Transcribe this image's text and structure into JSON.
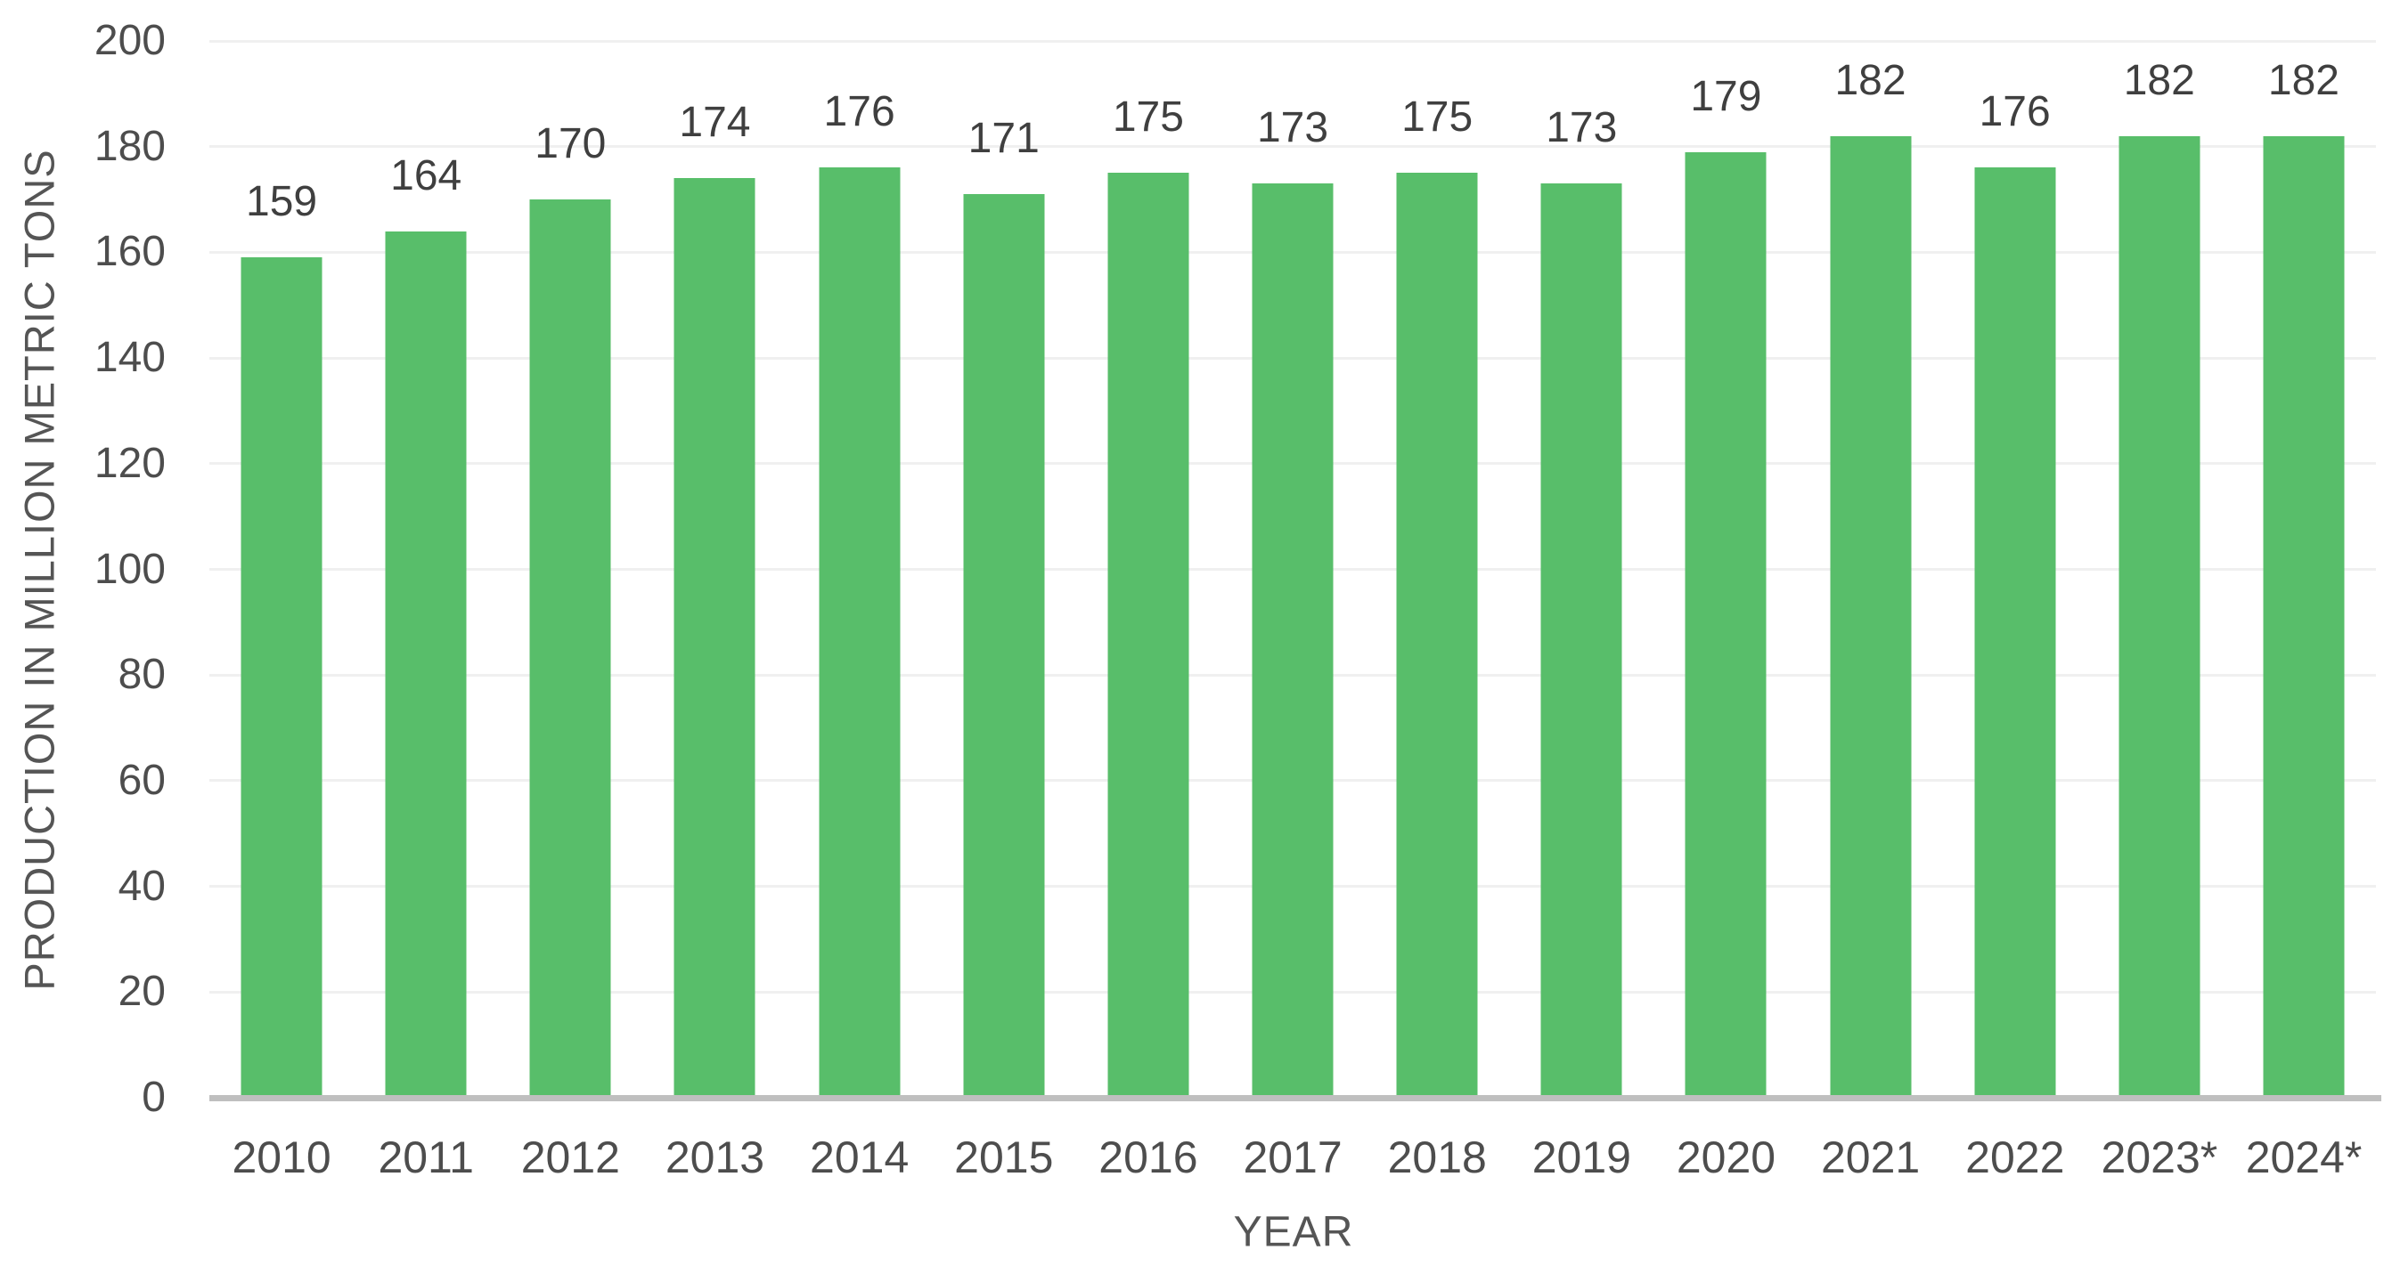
{
  "chart_data": {
    "type": "bar",
    "title": "",
    "xlabel": "YEAR",
    "ylabel": "PRODUCTION IN MILLION METRIC TONS",
    "categories": [
      "2010",
      "2011",
      "2012",
      "2013",
      "2014",
      "2015",
      "2016",
      "2017",
      "2018",
      "2019",
      "2020",
      "2021",
      "2022",
      "2023*",
      "2024*"
    ],
    "values": [
      159,
      164,
      170,
      174,
      176,
      171,
      175,
      173,
      175,
      173,
      179,
      182,
      176,
      182,
      182
    ],
    "ylim": [
      0,
      200
    ],
    "ytick_step": 20,
    "yticks": [
      0,
      20,
      40,
      60,
      80,
      100,
      120,
      140,
      160,
      180,
      200
    ],
    "grid": true,
    "legend": "none",
    "colors": {
      "bar": "#58BE6A",
      "grid_line": "#F0F0F0",
      "axis_line": "#BFBFBF",
      "data_label": "#3F3F3F",
      "tick_label": "#4D4D4D",
      "axis_title": "#555555"
    }
  }
}
